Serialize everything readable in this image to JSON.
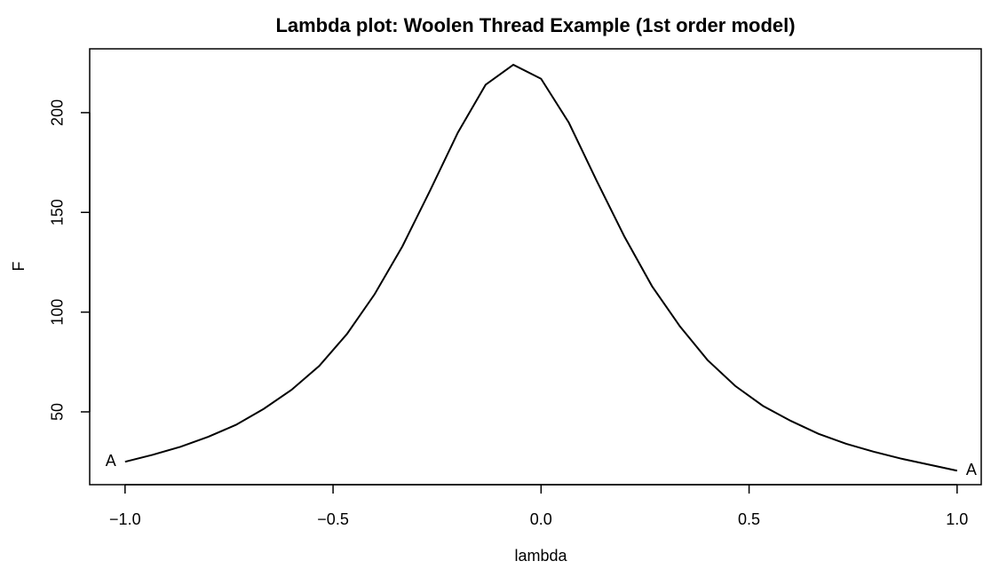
{
  "chart_data": {
    "type": "line",
    "title": "Lambda plot: Woolen Thread Example (1st order model)",
    "x_label": "lambda",
    "y_label": "F",
    "x": [
      -1,
      -0.9333,
      -0.8667,
      -0.8,
      -0.7333,
      -0.6667,
      -0.6,
      -0.5333,
      -0.4667,
      -0.4,
      -0.3333,
      -0.2667,
      -0.2,
      -0.1333,
      -0.0667,
      0,
      0.0667,
      0.1333,
      0.2,
      0.2667,
      0.3333,
      0.4,
      0.4667,
      0.5333,
      0.6,
      0.6667,
      0.7333,
      0.8,
      0.8667,
      0.9333,
      1
    ],
    "series": [
      {
        "color": "#000000",
        "values": [
          25,
          28.5,
          32.5,
          37.5,
          43.5,
          51.5,
          61,
          73,
          89,
          109,
          133,
          161,
          190,
          214,
          224,
          217,
          195,
          166,
          138,
          113,
          93,
          76,
          63,
          53,
          45.5,
          39,
          34,
          30,
          26.5,
          23.5,
          20.5
        ]
      }
    ],
    "annotations": [
      "A",
      "A"
    ],
    "xlim": [
      -1.085,
      1.058
    ],
    "ylim": [
      13.5,
      232
    ],
    "xticks": [
      {
        "value": -1,
        "label": "−1.0"
      },
      {
        "value": -0.5,
        "label": "−0.5"
      },
      {
        "value": 0,
        "label": "0.0"
      },
      {
        "value": 0.5,
        "label": "0.5"
      },
      {
        "value": 1,
        "label": "1.0"
      }
    ],
    "yticks": [
      50,
      100,
      150,
      200
    ]
  }
}
